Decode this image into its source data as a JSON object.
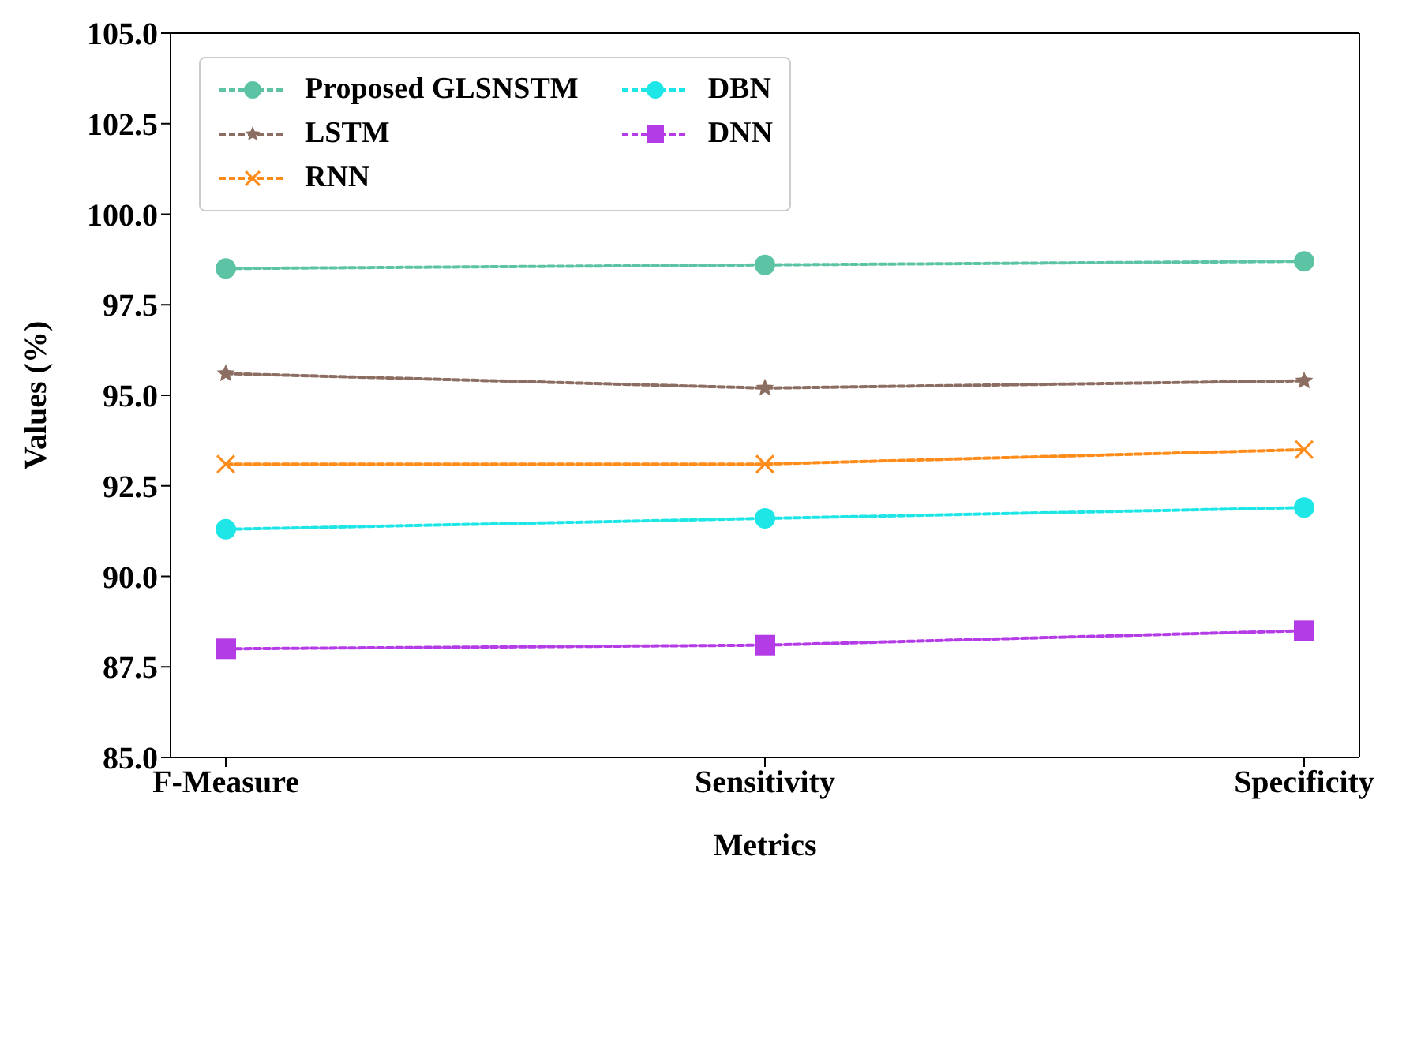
{
  "chart_data": {
    "type": "line",
    "xlabel": "Metrics",
    "ylabel": "Values (%)",
    "categories": [
      "F-Measure",
      "Sensitivity",
      "Specificity"
    ],
    "series": [
      {
        "name": "Proposed GLSNSTM",
        "color": "#5cc4a4",
        "marker": "circle",
        "values": [
          98.5,
          98.6,
          98.7
        ]
      },
      {
        "name": "LSTM",
        "color": "#8c6d62",
        "marker": "star",
        "values": [
          95.6,
          95.2,
          95.4
        ]
      },
      {
        "name": "RNN",
        "color": "#ff8c1a",
        "marker": "cross",
        "values": [
          93.1,
          93.1,
          93.5
        ]
      },
      {
        "name": "DBN",
        "color": "#1ee6e6",
        "marker": "circle",
        "values": [
          91.3,
          91.6,
          91.9
        ]
      },
      {
        "name": "DNN",
        "color": "#b43ce6",
        "marker": "square",
        "values": [
          88.0,
          88.1,
          88.5
        ]
      }
    ],
    "ylim": [
      85,
      105
    ],
    "yticks": [
      {
        "value": 85,
        "label": "85.0"
      },
      {
        "value": 87.5,
        "label": "87.5"
      },
      {
        "value": 90,
        "label": "90.0"
      },
      {
        "value": 92.5,
        "label": "92.5"
      },
      {
        "value": 95,
        "label": "95.0"
      },
      {
        "value": 97.5,
        "label": "97.5"
      },
      {
        "value": 100,
        "label": "100.0"
      },
      {
        "value": 102.5,
        "label": "102.5"
      },
      {
        "value": 105,
        "label": "105.0"
      }
    ],
    "grid": false,
    "legend": "top left",
    "line_style": "dashed"
  }
}
